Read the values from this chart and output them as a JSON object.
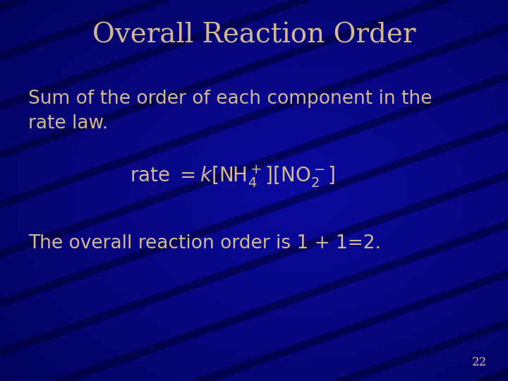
{
  "title": "Overall Reaction Order",
  "title_color": "#D4B896",
  "title_fontsize": 28,
  "bg_color_main": "#00008B",
  "bg_color_dark": "#000040",
  "body_text_color": "#D4B896",
  "body_fontsize": 19,
  "equation_fontsize": 20,
  "slide_number": "22",
  "slide_number_fontsize": 12,
  "line1": "Sum of the order of each component in the",
  "line2": "rate law.",
  "bottom_line": "The overall reaction order is 1 + 1=2.",
  "wave_color": "#000030",
  "wave_alpha": 0.55,
  "wave_linewidth": 8
}
